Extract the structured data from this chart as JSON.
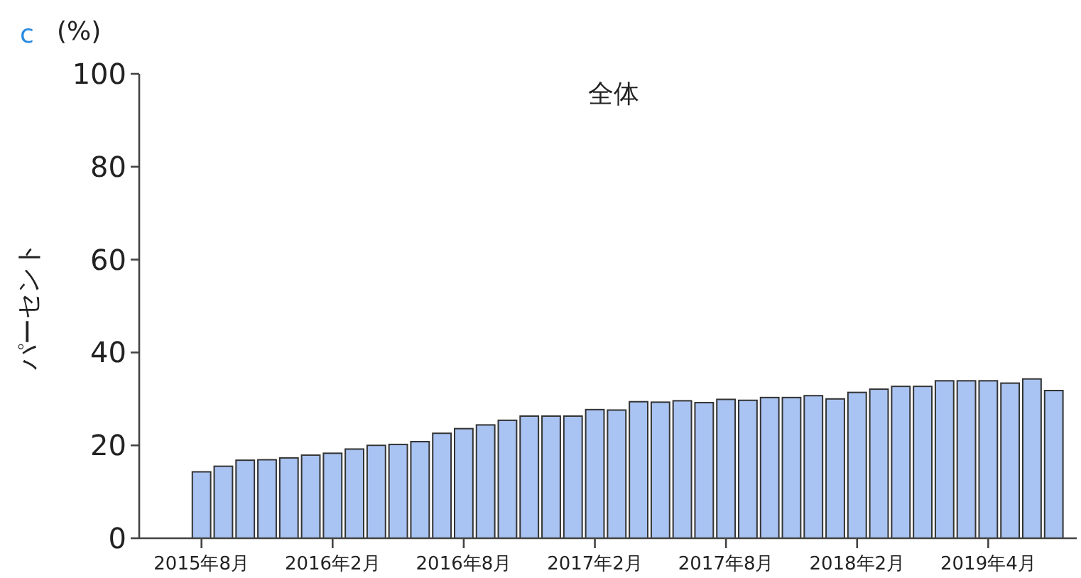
{
  "chart_data": {
    "type": "bar",
    "title": "全体",
    "ylabel": "パーセント",
    "annotations": [
      "c",
      "(%)"
    ],
    "categories": [
      "2015年8月",
      null,
      null,
      null,
      null,
      null,
      "2016年2月",
      null,
      null,
      null,
      null,
      null,
      "2016年8月",
      null,
      null,
      null,
      null,
      null,
      "2017年2月",
      null,
      null,
      null,
      null,
      null,
      "2017年8月",
      null,
      null,
      null,
      null,
      null,
      "2018年2月",
      null,
      null,
      null,
      null,
      null,
      "2019年4月",
      null,
      null,
      null
    ],
    "values": [
      14.3,
      15.5,
      16.8,
      16.9,
      17.3,
      17.9,
      18.3,
      19.2,
      20.0,
      20.2,
      20.8,
      22.6,
      23.6,
      24.4,
      25.4,
      26.3,
      26.3,
      26.3,
      27.7,
      27.6,
      29.4,
      29.3,
      29.6,
      29.2,
      29.9,
      29.7,
      30.3,
      30.3,
      30.7,
      30.0,
      31.4,
      32.1,
      32.7,
      32.7,
      33.9,
      33.9,
      33.9,
      33.4,
      34.3,
      31.8
    ],
    "color": "#a9c3f2",
    "ylim": [
      0,
      100
    ],
    "yticks": [
      0,
      20,
      40,
      60,
      80,
      100
    ]
  }
}
